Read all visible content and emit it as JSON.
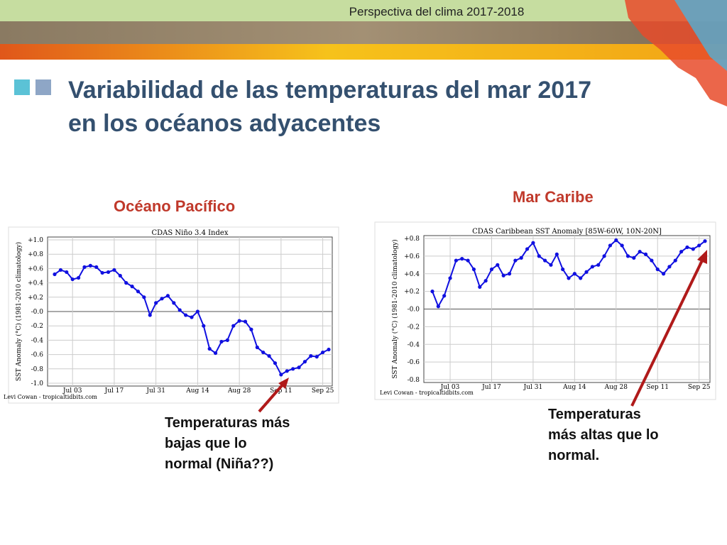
{
  "header": {
    "title": "Perspectiva del clima 2017-2018"
  },
  "slide": {
    "title_lines": [
      "Variabilidad de las temperaturas del mar 2017",
      "en los océanos adyacentes"
    ],
    "labels": [
      "Océano Pacífico",
      "Mar Caribe"
    ],
    "annotations": [
      [
        "Temperaturas más",
        "bajas que lo",
        "normal (Niña??)"
      ],
      [
        "Temperaturas",
        "más altas que lo",
        "normal."
      ]
    ]
  },
  "chart_data": [
    {
      "type": "line",
      "title": "CDAS Niño 3.4 Index",
      "y_label": "SST Anomaly (°C) (1981-2010 climatology)",
      "credit": "Levi Cowan - tropicaltidbits.com",
      "categories": [
        null,
        null,
        null,
        "Jul 03",
        null,
        null,
        null,
        null,
        null,
        null,
        "Jul 17",
        null,
        null,
        null,
        null,
        null,
        null,
        "Jul 31",
        null,
        null,
        null,
        null,
        null,
        null,
        "Aug 14",
        null,
        null,
        null,
        null,
        null,
        null,
        "Aug 28",
        null,
        null,
        null,
        null,
        null,
        null,
        "Sep 11",
        null,
        null,
        null,
        null,
        null,
        null,
        "Sep 25",
        null
      ],
      "series": [
        {
          "name": "Niño 3.4",
          "color": "#1010e0",
          "values": [
            0.52,
            0.58,
            0.55,
            0.45,
            0.47,
            0.62,
            0.64,
            0.62,
            0.54,
            0.55,
            0.58,
            0.5,
            0.4,
            0.35,
            0.28,
            0.2,
            -0.05,
            0.12,
            0.18,
            0.22,
            0.12,
            0.02,
            -0.05,
            -0.08,
            0.0,
            -0.2,
            -0.52,
            -0.58,
            -0.42,
            -0.4,
            -0.2,
            -0.13,
            -0.14,
            -0.25,
            -0.5,
            -0.57,
            -0.62,
            -0.72,
            -0.88,
            -0.83,
            -0.8,
            -0.78,
            -0.7,
            -0.62,
            -0.63,
            -0.57,
            -0.53
          ]
        }
      ],
      "ylim": [
        -1.0,
        1.0
      ],
      "yticks": [
        {
          "value": -1.0,
          "label": "-1.0"
        },
        {
          "value": -0.8,
          "label": "-0.8"
        },
        {
          "value": -0.6,
          "label": "-0.6"
        },
        {
          "value": -0.4,
          "label": "-0.4"
        },
        {
          "value": -0.2,
          "label": "-0.2"
        },
        {
          "value": 0.0,
          "label": "-0.0"
        },
        {
          "value": 0.2,
          "label": "+0.2"
        },
        {
          "value": 0.4,
          "label": "+0.4"
        },
        {
          "value": 0.6,
          "label": "+0.6"
        },
        {
          "value": 0.8,
          "label": "+0.8"
        },
        {
          "value": 1.0,
          "label": "+1.0"
        }
      ],
      "grid": true
    },
    {
      "type": "line",
      "title": "CDAS Caribbean SST Anomaly [85W-60W, 10N-20N]",
      "y_label": "SST Anomaly (°C) (1981-2010 climatology)",
      "credit": "Levi Cowan - tropicaltidbits.com",
      "categories": [
        null,
        null,
        null,
        "Jul 03",
        null,
        null,
        null,
        null,
        null,
        null,
        "Jul 17",
        null,
        null,
        null,
        null,
        null,
        null,
        "Jul 31",
        null,
        null,
        null,
        null,
        null,
        null,
        "Aug 14",
        null,
        null,
        null,
        null,
        null,
        null,
        "Aug 28",
        null,
        null,
        null,
        null,
        null,
        null,
        "Sep 11",
        null,
        null,
        null,
        null,
        null,
        null,
        "Sep 25",
        null
      ],
      "series": [
        {
          "name": "Caribbean",
          "color": "#1010e0",
          "values": [
            0.2,
            0.03,
            0.15,
            0.35,
            0.55,
            0.57,
            0.55,
            0.45,
            0.25,
            0.32,
            0.45,
            0.5,
            0.38,
            0.4,
            0.55,
            0.58,
            0.68,
            0.75,
            0.6,
            0.55,
            0.5,
            0.62,
            0.45,
            0.35,
            0.4,
            0.35,
            0.42,
            0.48,
            0.5,
            0.6,
            0.72,
            0.78,
            0.72,
            0.6,
            0.58,
            0.65,
            0.62,
            0.55,
            0.45,
            0.4,
            0.48,
            0.55,
            0.65,
            0.7,
            0.68,
            0.72,
            0.77
          ]
        }
      ],
      "ylim": [
        -0.8,
        0.8
      ],
      "yticks": [
        {
          "value": -0.8,
          "label": "-0.8"
        },
        {
          "value": -0.6,
          "label": "-0.6"
        },
        {
          "value": -0.4,
          "label": "-0.4"
        },
        {
          "value": -0.2,
          "label": "-0.2"
        },
        {
          "value": 0.0,
          "label": "-0.0"
        },
        {
          "value": 0.2,
          "label": "+0.2"
        },
        {
          "value": 0.4,
          "label": "+0.4"
        },
        {
          "value": 0.6,
          "label": "+0.6"
        },
        {
          "value": 0.8,
          "label": "+0.8"
        }
      ],
      "grid": true
    }
  ]
}
